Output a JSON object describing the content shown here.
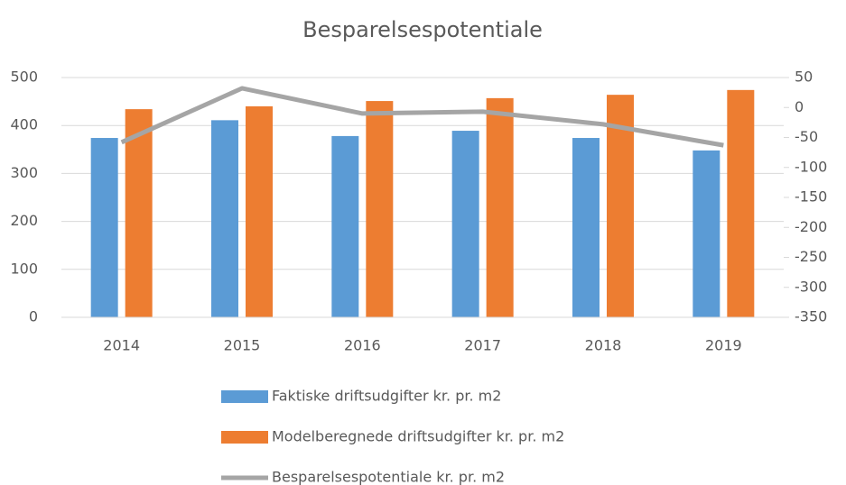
{
  "chart_data": {
    "type": "bar_line",
    "title": "Besparelsespotentiale",
    "categories": [
      "2014",
      "2015",
      "2016",
      "2017",
      "2018",
      "2019"
    ],
    "series": [
      {
        "name": "Faktiske driftsudgifter kr. pr. m2",
        "color": "#5b9bd5",
        "type": "bar",
        "values": [
          374,
          411,
          378,
          389,
          374,
          348
        ]
      },
      {
        "name": "Modelberegnede driftsudgifter kr. pr. m2",
        "color": "#ed7d31",
        "type": "bar",
        "values": [
          434,
          440,
          451,
          457,
          464,
          474
        ]
      },
      {
        "name": "Besparelsespotentiale kr. pr. m2",
        "color": "#a5a5a5",
        "type": "line",
        "axis": "y2",
        "values": [
          -58,
          32,
          -10,
          -7,
          -28,
          -63
        ]
      }
    ],
    "ylim": [
      0,
      500
    ],
    "yticks": [
      0,
      100,
      200,
      300,
      400,
      500
    ],
    "y2lim": [
      -350,
      50
    ],
    "y2ticks": [
      -350,
      -300,
      -250,
      -200,
      -150,
      -100,
      -50,
      0,
      50
    ],
    "grid": true,
    "legend": "bottom"
  }
}
